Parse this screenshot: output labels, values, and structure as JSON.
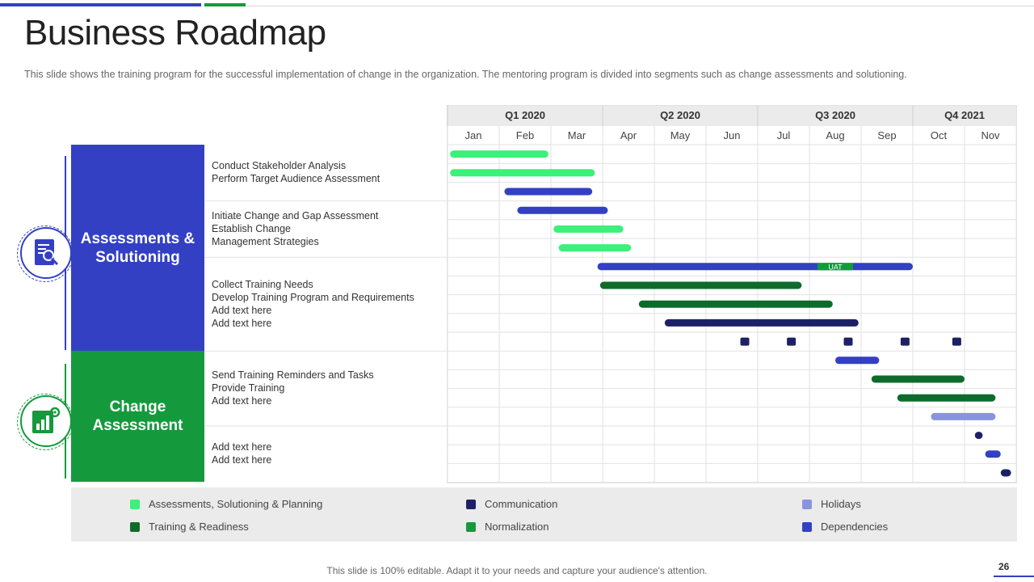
{
  "title": "Business Roadmap",
  "subtitle": "This slide shows the training program for the successful implementation of change in the organization. The mentoring program is divided into segments such as change assessments and solutioning.",
  "groups": {
    "a": {
      "label": "Assessments & Solutioning",
      "icon": "document-magnifier-icon"
    },
    "c": {
      "label": "Change Assessment",
      "icon": "report-gear-icon"
    }
  },
  "tasks": {
    "block1": [
      "Conduct Stakeholder Analysis",
      "Perform Target Audience Assessment"
    ],
    "block2": [
      "Initiate Change and Gap Assessment",
      "Establish Change",
      "Management Strategies"
    ],
    "block3": [
      "Collect Training Needs",
      "Develop Training Program and Requirements",
      "Add text here",
      "Add text here"
    ],
    "block4": [
      "Send Training Reminders and Tasks",
      "Provide Training",
      "Add text here"
    ],
    "block5": [
      "Add text here",
      "Add text here"
    ]
  },
  "colors": {
    "assess": "#3cf07a",
    "comm": "#1c2166",
    "holiday": "#8b93dd",
    "training": "#0f6b2b",
    "normal": "#149a3c",
    "dep": "#3340c4"
  },
  "chart_data": {
    "type": "gantt",
    "quarters": [
      {
        "label": "Q1 2020",
        "start": 0,
        "span": 3
      },
      {
        "label": "Q2 2020",
        "start": 3,
        "span": 3
      },
      {
        "label": "Q3 2020",
        "start": 6,
        "span": 3
      },
      {
        "label": "Q4 2021",
        "start": 9,
        "span": 2
      }
    ],
    "months": [
      "Jan",
      "Feb",
      "Mar",
      "Apr",
      "May",
      "Jun",
      "Jul",
      "Aug",
      "Sep",
      "Oct",
      "Nov"
    ],
    "rows": 18,
    "bars": [
      {
        "row": 0,
        "start": 0.05,
        "end": 1.95,
        "category": "assess"
      },
      {
        "row": 1,
        "start": 0.05,
        "end": 2.85,
        "category": "assess"
      },
      {
        "row": 2,
        "start": 1.1,
        "end": 2.8,
        "category": "dep"
      },
      {
        "row": 3,
        "start": 1.35,
        "end": 3.1,
        "category": "dep"
      },
      {
        "row": 4,
        "start": 2.05,
        "end": 3.4,
        "category": "assess"
      },
      {
        "row": 5,
        "start": 2.15,
        "end": 3.55,
        "category": "assess"
      },
      {
        "row": 6,
        "start": 2.9,
        "end": 9.0,
        "category": "dep",
        "label": "UAT",
        "label_at": 7.5
      },
      {
        "row": 7,
        "start": 2.95,
        "end": 6.85,
        "category": "training"
      },
      {
        "row": 8,
        "start": 3.7,
        "end": 7.45,
        "category": "training"
      },
      {
        "row": 9,
        "start": 4.2,
        "end": 7.95,
        "category": "comm"
      },
      {
        "row": 11,
        "start": 7.5,
        "end": 8.35,
        "category": "dep"
      },
      {
        "row": 12,
        "start": 8.2,
        "end": 10.0,
        "category": "training"
      },
      {
        "row": 13,
        "start": 8.7,
        "end": 10.6,
        "category": "training"
      },
      {
        "row": 14,
        "start": 9.35,
        "end": 10.6,
        "category": "holiday"
      },
      {
        "row": 15,
        "start": 10.2,
        "end": 10.35,
        "category": "comm"
      },
      {
        "row": 16,
        "start": 10.4,
        "end": 10.7,
        "category": "dep"
      },
      {
        "row": 17,
        "start": 10.7,
        "end": 10.9,
        "category": "comm"
      }
    ],
    "milestones": [
      {
        "row": 10,
        "at": 5.75,
        "category": "comm"
      },
      {
        "row": 10,
        "at": 6.65,
        "category": "comm"
      },
      {
        "row": 10,
        "at": 7.75,
        "category": "comm"
      },
      {
        "row": 10,
        "at": 8.85,
        "category": "comm"
      },
      {
        "row": 10,
        "at": 9.85,
        "category": "comm"
      }
    ],
    "row_separators": [
      3,
      6,
      11,
      15
    ],
    "legend": [
      {
        "label": "Assessments, Solutioning & Planning",
        "category": "assess"
      },
      {
        "label": "Training  & Readiness",
        "category": "training"
      },
      {
        "label": "Communication",
        "category": "comm"
      },
      {
        "label": "Normalization",
        "category": "normal"
      },
      {
        "label": "Holidays",
        "category": "holiday"
      },
      {
        "label": "Dependencies",
        "category": "dep"
      }
    ]
  },
  "footer": "This slide is 100% editable. Adapt it to your needs and capture your audience's attention.",
  "page_number": "26"
}
